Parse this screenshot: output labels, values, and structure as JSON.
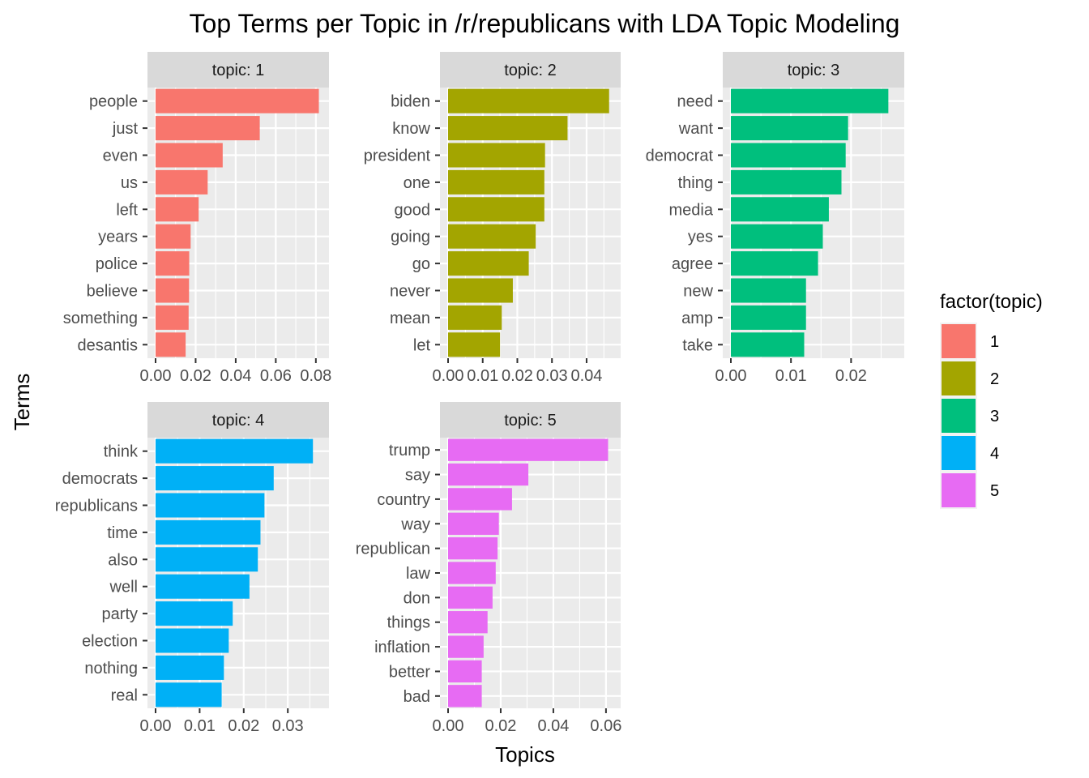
{
  "chart_data": {
    "type": "bar",
    "orientation": "horizontal",
    "title": "Top Terms per Topic in /r/republicans with LDA Topic Modeling",
    "xlabel": "Topics",
    "ylabel": "Terms",
    "legend": {
      "title": "factor(topic)",
      "placement": "right",
      "entries": [
        "1",
        "2",
        "3",
        "4",
        "5"
      ]
    },
    "grid": true,
    "panels": [
      {
        "strip": "topic: 1",
        "color": "#F8766D",
        "xlim": [
          0,
          0.0825
        ],
        "ticks": [
          0,
          0.02,
          0.04,
          0.06,
          0.08
        ],
        "tick_labels": [
          "0.00",
          "0.02",
          "0.04",
          "0.06",
          "0.08"
        ],
        "terms": [
          "people",
          "just",
          "even",
          "us",
          "left",
          "years",
          "police",
          "believe",
          "something",
          "desantis"
        ],
        "values": [
          0.0815,
          0.052,
          0.0335,
          0.026,
          0.0215,
          0.0175,
          0.0168,
          0.0167,
          0.0165,
          0.015
        ]
      },
      {
        "strip": "topic: 2",
        "color": "#A3A500",
        "xlim": [
          0,
          0.0475
        ],
        "ticks": [
          0,
          0.01,
          0.02,
          0.03,
          0.04
        ],
        "tick_labels": [
          "0.00",
          "0.01",
          "0.02",
          "0.03",
          "0.04"
        ],
        "terms": [
          "biden",
          "know",
          "president",
          "one",
          "good",
          "going",
          "go",
          "never",
          "mean",
          "let"
        ],
        "values": [
          0.0465,
          0.0345,
          0.028,
          0.0278,
          0.0278,
          0.0253,
          0.0233,
          0.0187,
          0.0155,
          0.015
        ]
      },
      {
        "strip": "topic: 3",
        "color": "#00BF7D",
        "xlim": [
          0,
          0.0275
        ],
        "ticks": [
          0,
          0.01,
          0.02
        ],
        "tick_labels": [
          "0.00",
          "0.01",
          "0.02"
        ],
        "terms": [
          "need",
          "want",
          "democrat",
          "thing",
          "media",
          "yes",
          "agree",
          "new",
          "amp",
          "take"
        ],
        "values": [
          0.0262,
          0.0195,
          0.0191,
          0.0184,
          0.0163,
          0.0153,
          0.0145,
          0.0125,
          0.0125,
          0.0122
        ]
      },
      {
        "strip": "topic: 4",
        "color": "#00B0F6",
        "xlim": [
          0,
          0.0375
        ],
        "ticks": [
          0,
          0.01,
          0.02,
          0.03
        ],
        "tick_labels": [
          "0.00",
          "0.01",
          "0.02",
          "0.03"
        ],
        "terms": [
          "think",
          "democrats",
          "republicans",
          "time",
          "also",
          "well",
          "party",
          "election",
          "nothing",
          "real"
        ],
        "values": [
          0.0357,
          0.0268,
          0.0247,
          0.0238,
          0.0232,
          0.0213,
          0.0175,
          0.0166,
          0.0155,
          0.015
        ]
      },
      {
        "strip": "topic: 5",
        "color": "#E76BF3",
        "xlim": [
          0,
          0.0625
        ],
        "ticks": [
          0,
          0.02,
          0.04,
          0.06
        ],
        "tick_labels": [
          "0.00",
          "0.02",
          "0.04",
          "0.06"
        ],
        "terms": [
          "trump",
          "say",
          "country",
          "way",
          "republican",
          "law",
          "don",
          "things",
          "inflation",
          "better",
          "bad"
        ],
        "values": [
          0.0608,
          0.0305,
          0.0243,
          0.0193,
          0.0188,
          0.0181,
          0.0169,
          0.015,
          0.0135,
          0.0128,
          0.0128
        ]
      }
    ]
  }
}
